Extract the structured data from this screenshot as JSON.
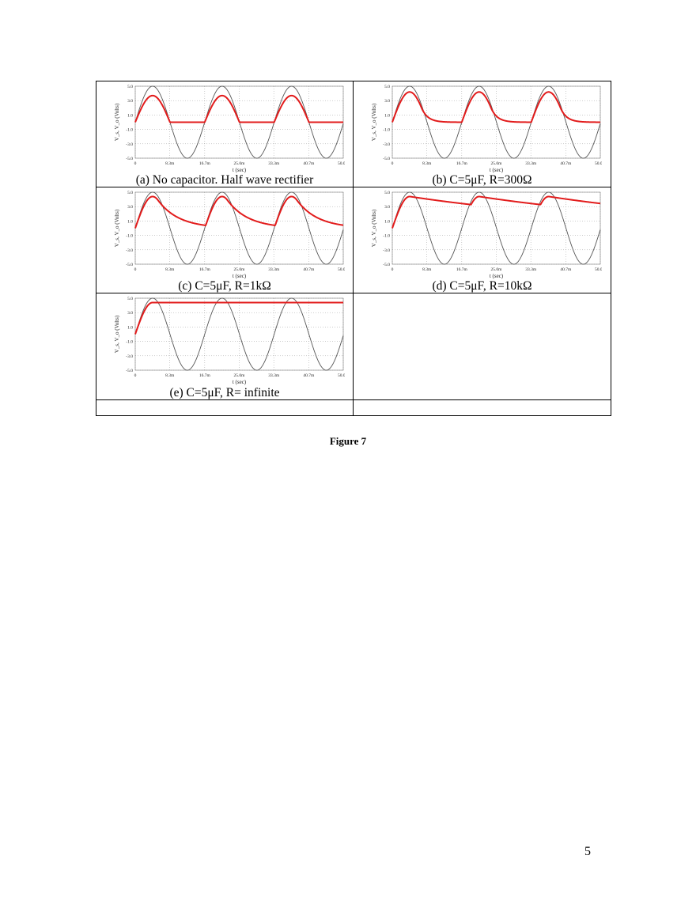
{
  "figure_label": "Figure 7",
  "page_number": "5",
  "colors": {
    "input": "#555555",
    "output": "#e21b1b",
    "grid": "#9a9a9a"
  },
  "chart_data": [
    {
      "type": "line",
      "caption": "(a) No capacitor. Half wave rectifier",
      "xlabel": "t (sec)",
      "ylabel": "V_s, V_o (Volts)",
      "xlim": [
        0,
        50
      ],
      "ylim": [
        -5,
        5
      ],
      "x_ticks": [
        "0",
        "8.3m",
        "16.7m",
        "25.0m",
        "33.3m",
        "40.7m",
        "50.0m"
      ],
      "y_ticks": [
        "5.0",
        "3.0",
        "1.0",
        "-1.0",
        "-3.0",
        "-5.0"
      ],
      "grid": true,
      "series": [
        {
          "role": "input",
          "type": "sine",
          "amplitude": 5,
          "period_ms": 16.7
        },
        {
          "role": "output",
          "capacitance_uF": null,
          "resistance_ohm": null,
          "peak": 3.7,
          "offset": 0
        }
      ]
    },
    {
      "type": "line",
      "caption": "(b) C=5μF, R=300Ω",
      "xlabel": "t (sec)",
      "ylabel": "V_s, V_o (Volts)",
      "xlim": [
        0,
        50
      ],
      "ylim": [
        -5,
        5
      ],
      "x_ticks": [
        "0",
        "8.3m",
        "16.7m",
        "25.0m",
        "33.3m",
        "40.7m",
        "50.0m"
      ],
      "y_ticks": [
        "5.0",
        "3.0",
        "1.0",
        "-1.0",
        "-3.0",
        "-5.0"
      ],
      "grid": true,
      "series": [
        {
          "role": "input",
          "type": "sine",
          "amplitude": 5,
          "period_ms": 16.7
        },
        {
          "role": "output",
          "capacitance_uF": 5,
          "resistance_ohm": 300,
          "peak": 4.2,
          "offset": 0
        }
      ]
    },
    {
      "type": "line",
      "caption": "(c) C=5μF, R=1kΩ",
      "xlabel": "t (sec)",
      "ylabel": "V_s, V_o (Volts)",
      "xlim": [
        0,
        50
      ],
      "ylim": [
        -5,
        5
      ],
      "x_ticks": [
        "0",
        "8.3m",
        "16.7m",
        "25.0m",
        "33.3m",
        "40.7m",
        "50.0m"
      ],
      "y_ticks": [
        "5.0",
        "3.0",
        "1.0",
        "-1.0",
        "-3.0",
        "-5.0"
      ],
      "grid": true,
      "series": [
        {
          "role": "input",
          "type": "sine",
          "amplitude": 5,
          "period_ms": 16.7
        },
        {
          "role": "output",
          "capacitance_uF": 5,
          "resistance_ohm": 1000,
          "peak": 4.4,
          "offset": 0
        }
      ]
    },
    {
      "type": "line",
      "caption": "(d) C=5μF, R=10kΩ",
      "xlabel": "t (sec)",
      "ylabel": "V_s, V_o (Volts)",
      "xlim": [
        0,
        50
      ],
      "ylim": [
        -5,
        5
      ],
      "x_ticks": [
        "0",
        "8.3m",
        "16.7m",
        "25.0m",
        "33.3m",
        "40.7m",
        "50.0m"
      ],
      "y_ticks": [
        "5.0",
        "3.0",
        "1.0",
        "-1.0",
        "-3.0",
        "-5.0"
      ],
      "grid": true,
      "series": [
        {
          "role": "input",
          "type": "sine",
          "amplitude": 5,
          "period_ms": 16.7
        },
        {
          "role": "output",
          "capacitance_uF": 5,
          "resistance_ohm": 10000,
          "peak": 4.4,
          "offset": 0.3
        }
      ]
    },
    {
      "type": "line",
      "caption": "(e) C=5μF, R= infinite",
      "xlabel": "t (sec)",
      "ylabel": "V_s, V_o (Volts)",
      "xlim": [
        0,
        50
      ],
      "ylim": [
        -5,
        5
      ],
      "x_ticks": [
        "0",
        "8.3m",
        "16.7m",
        "25.0m",
        "33.3m",
        "40.7m",
        "50.0m"
      ],
      "y_ticks": [
        "5.0",
        "3.0",
        "1.0",
        "-1.0",
        "-3.0",
        "-5.0"
      ],
      "grid": true,
      "series": [
        {
          "role": "input",
          "type": "sine",
          "amplitude": 5,
          "period_ms": 16.7
        },
        {
          "role": "output",
          "capacitance_uF": 5,
          "resistance_ohm": null,
          "peak": 4.4,
          "offset": 0.3
        }
      ]
    }
  ]
}
